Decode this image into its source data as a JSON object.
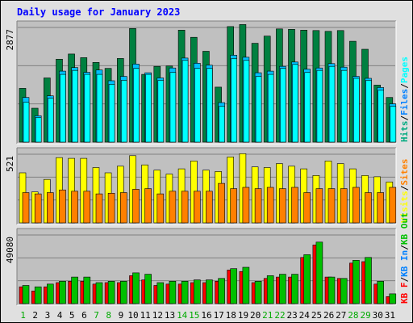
{
  "chart_data": {
    "type": "bar",
    "title": "Daily usage for January 2023",
    "categories": [
      "1",
      "2",
      "3",
      "4",
      "5",
      "6",
      "7",
      "8",
      "9",
      "10",
      "11",
      "12",
      "13",
      "14",
      "15",
      "16",
      "17",
      "18",
      "19",
      "20",
      "21",
      "22",
      "23",
      "24",
      "25",
      "26",
      "27",
      "28",
      "29",
      "30",
      "31"
    ],
    "weekend_days": [
      1,
      7,
      8,
      14,
      15,
      21,
      22,
      28,
      29
    ],
    "colors": {
      "title": "#0000ff",
      "weekday_label": "#000000",
      "weekend_label": "#00aa00",
      "hits": "#008040",
      "files": "#00c0ff",
      "pages": "#00ffff",
      "visits": "#ffff00",
      "sites": "#ff8000",
      "kb_out": "#00c000",
      "kb_in": "#0080ff",
      "kb_f": "#ff0000",
      "plot_bg": "#c0c0c0",
      "frame_bg": "#e0e0e0"
    },
    "panels": [
      {
        "id": "hits-files-pages",
        "max_label": "2877",
        "ylim": [
          0,
          2877
        ],
        "legend": [
          {
            "text": "Hits",
            "color": "#00aa80"
          },
          {
            "text": "/",
            "color": "#000000"
          },
          {
            "text": "Files",
            "color": "#0080ff"
          },
          {
            "text": "/",
            "color": "#000000"
          },
          {
            "text": "Pages",
            "color": "#00ffff"
          }
        ],
        "series": [
          {
            "name": "Hits",
            "color": "#008040",
            "values": [
              1350,
              850,
              1610,
              2080,
              2210,
              2120,
              2000,
              1850,
              2100,
              2850,
              1700,
              1900,
              1910,
              2810,
              2630,
              2280,
              1380,
              2900,
              2950,
              2480,
              2660,
              2840,
              2830,
              2810,
              2800,
              2780,
              2800,
              2530,
              2330,
              1430,
              1120
            ]
          },
          {
            "name": "Files",
            "color": "#00c0ff",
            "values": [
              1120,
              660,
              1160,
              1780,
              1870,
              1750,
              1810,
              1540,
              1650,
              1960,
              1740,
              1610,
              1860,
              2110,
              1980,
              1930,
              990,
              2180,
              2130,
              1740,
              1780,
              1900,
              2010,
              1830,
              1860,
              1970,
              1880,
              1650,
              1600,
              1370,
              960
            ]
          },
          {
            "name": "Pages",
            "color": "#00ffff",
            "values": [
              1000,
              620,
              1100,
              1700,
              1800,
              1700,
              1700,
              1450,
              1550,
              1850,
              1700,
              1550,
              1750,
              2050,
              1850,
              1850,
              900,
              2100,
              2050,
              1650,
              1700,
              1850,
              1950,
              1750,
              1800,
              1900,
              1800,
              1600,
              1550,
              1300,
              900
            ]
          }
        ]
      },
      {
        "id": "visits-sites",
        "max_label": "521",
        "ylim": [
          0,
          521
        ],
        "legend": [
          {
            "text": "Visits",
            "color": "#ffff00"
          },
          {
            "text": "/",
            "color": "#000000"
          },
          {
            "text": "Sites",
            "color": "#ff8000"
          }
        ],
        "series": [
          {
            "name": "Visits",
            "color": "#ffff00",
            "values": [
              380,
              235,
              330,
              495,
              490,
              490,
              420,
              380,
              430,
              510,
              440,
              400,
              370,
              410,
              470,
              400,
              390,
              500,
              525,
              425,
              420,
              450,
              430,
              410,
              360,
              470,
              450,
              410,
              360,
              350,
              310
            ]
          },
          {
            "name": "Sites",
            "color": "#ff8000",
            "values": [
              230,
              220,
              230,
              250,
              240,
              240,
              220,
              225,
              230,
              255,
              260,
              220,
              240,
              240,
              240,
              240,
              300,
              260,
              270,
              260,
              270,
              260,
              270,
              230,
              260,
              260,
              260,
              270,
              230,
              230,
              270
            ]
          }
        ]
      },
      {
        "id": "kbf-kbin-kbout",
        "max_label": "49080",
        "ylim": [
          0,
          49080
        ],
        "legend": [
          {
            "text": "KB F",
            "color": "#ff0000"
          },
          {
            "text": "/",
            "color": "#000000"
          },
          {
            "text": "KB In",
            "color": "#0080ff"
          },
          {
            "text": "/",
            "color": "#000000"
          },
          {
            "text": "KB Out",
            "color": "#00c000"
          }
        ],
        "series": [
          {
            "name": "KB F",
            "color": "#ff0000",
            "values": [
              12000,
              9000,
              12000,
              15000,
              16000,
              16000,
              14000,
              15000,
              15000,
              20000,
              17000,
              13000,
              14000,
              14000,
              15000,
              15000,
              16000,
              24000,
              23000,
              15000,
              18000,
              19000,
              19000,
              33000,
              42000,
              19000,
              18000,
              29000,
              30000,
              14000,
              5000
            ]
          },
          {
            "name": "KB Out",
            "color": "#00c000",
            "values": [
              13000,
              12000,
              14000,
              16000,
              19000,
              19000,
              15000,
              16000,
              16000,
              22000,
              21000,
              15000,
              16000,
              16000,
              17000,
              17000,
              18000,
              25000,
              26000,
              16000,
              20000,
              21000,
              21000,
              35000,
              44000,
              19000,
              18000,
              31000,
              33000,
              16000,
              7000
            ]
          }
        ]
      }
    ]
  }
}
